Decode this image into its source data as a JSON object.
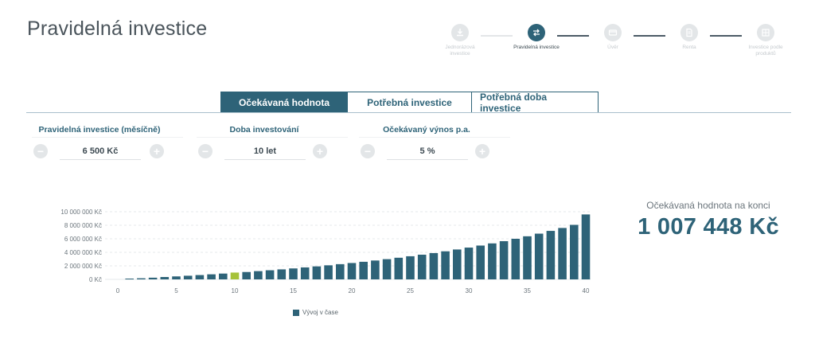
{
  "page": {
    "title": "Pravidelná investice"
  },
  "stepper": {
    "steps": [
      {
        "label": "Jednorázová investice",
        "icon": "download-icon"
      },
      {
        "label": "Pravidelná investice",
        "icon": "transfer-icon"
      },
      {
        "label": "Úvěr",
        "icon": "card-icon"
      },
      {
        "label": "Renta",
        "icon": "document-icon"
      },
      {
        "label": "Investice podle produktů",
        "icon": "grid-icon"
      }
    ],
    "active_index": 1
  },
  "tabs": [
    {
      "label": "Očekávaná hodnota",
      "active": true
    },
    {
      "label": "Potřebná investice",
      "active": false
    },
    {
      "label": "Potřebná doba investice",
      "active": false
    }
  ],
  "fields": [
    {
      "label": "Pravidelná investice (měsíčně)",
      "value": "6 500 Kč",
      "minus": "−",
      "plus": "+"
    },
    {
      "label": "Doba investování",
      "value": "10 let",
      "minus": "−",
      "plus": "+"
    },
    {
      "label": "Očekávaný výnos p.a.",
      "value": "5 %",
      "minus": "−",
      "plus": "+"
    }
  ],
  "result": {
    "label": "Očekávaná hodnota na konci",
    "value": "1 007 448 Kč"
  },
  "colors": {
    "primary": "#2e6378",
    "highlight": "#a6c23a",
    "inactive": "#e3e6e8"
  },
  "chart_data": {
    "type": "bar",
    "legend": "Vývoj v čase",
    "legend_position": "bottom",
    "grid": true,
    "ylim": [
      0,
      10000000
    ],
    "y_ticks": [
      "0 Kč",
      "2 000 000 Kč",
      "4 000 000 Kč",
      "6 000 000 Kč",
      "8 000 000 Kč",
      "10 000 000 Kč"
    ],
    "y_tick_values": [
      0,
      2000000,
      4000000,
      6000000,
      8000000,
      10000000
    ],
    "x_ticks": [
      "0",
      "5",
      "10",
      "15",
      "20",
      "25",
      "30",
      "35",
      "40"
    ],
    "x_tick_values": [
      0,
      5,
      10,
      15,
      20,
      25,
      30,
      35,
      40
    ],
    "highlight_year": 10,
    "x": [
      1,
      2,
      3,
      4,
      5,
      6,
      7,
      8,
      9,
      10,
      11,
      12,
      13,
      14,
      15,
      16,
      17,
      18,
      19,
      20,
      21,
      22,
      23,
      24,
      25,
      26,
      27,
      28,
      29,
      30,
      31,
      32,
      33,
      34,
      35,
      36,
      37,
      38,
      39,
      40
    ],
    "values": [
      80000,
      164000,
      250000,
      350000,
      440000,
      540000,
      640000,
      750000,
      860000,
      1007448,
      1090000,
      1220000,
      1350000,
      1480000,
      1620000,
      1770000,
      1920000,
      2080000,
      2250000,
      2420000,
      2600000,
      2790000,
      2990000,
      3200000,
      3420000,
      3650000,
      3890000,
      4150000,
      4420000,
      4700000,
      5000000,
      5320000,
      5650000,
      6000000,
      6370000,
      6760000,
      7170000,
      7600000,
      8060000,
      9600000
    ]
  }
}
